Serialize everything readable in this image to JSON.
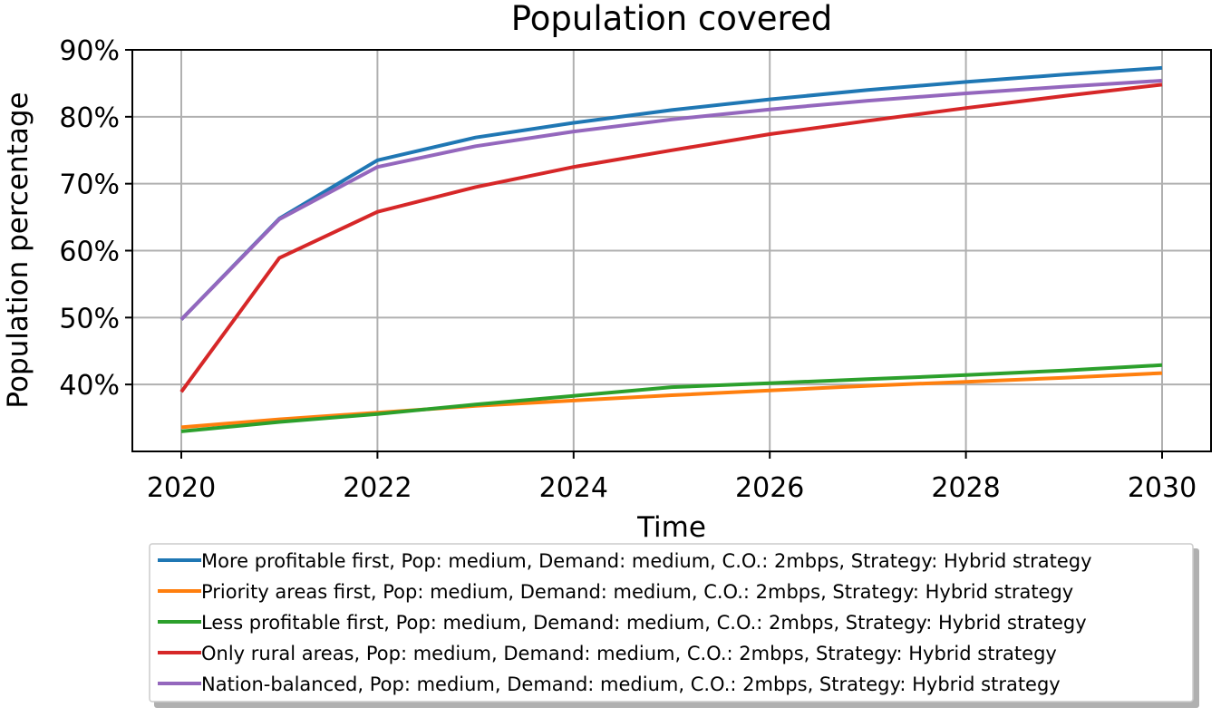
{
  "chart_data": {
    "type": "line",
    "title": "Population covered",
    "xlabel": "Time",
    "ylabel": "Population percentage",
    "x": [
      2020,
      2021,
      2022,
      2023,
      2024,
      2025,
      2026,
      2027,
      2028,
      2029,
      2030
    ],
    "xlim": [
      2020,
      2030
    ],
    "ylim": [
      30,
      90
    ],
    "xticks": [
      2020,
      2022,
      2024,
      2026,
      2028,
      2030
    ],
    "xtick_labels": [
      "2020",
      "2022",
      "2024",
      "2026",
      "2028",
      "2030"
    ],
    "yticks": [
      40,
      50,
      60,
      70,
      80,
      90
    ],
    "ytick_labels": [
      "40%",
      "50%",
      "60%",
      "70%",
      "80%",
      "90%"
    ],
    "grid": true,
    "legend_position": "bottom",
    "series": [
      {
        "name": "More profitable first, Pop: medium, Demand: medium, C.O.: 2mbps, Strategy: Hybrid strategy",
        "color": "#1f77b4",
        "values": [
          49.7,
          64.8,
          73.5,
          76.9,
          79.1,
          81.0,
          82.6,
          84.0,
          85.2,
          86.3,
          87.3
        ]
      },
      {
        "name": "Priority areas first, Pop: medium, Demand: medium, C.O.: 2mbps, Strategy: Hybrid strategy",
        "color": "#ff7f0e",
        "values": [
          33.6,
          34.8,
          35.8,
          36.8,
          37.6,
          38.4,
          39.1,
          39.8,
          40.4,
          41.0,
          41.7
        ]
      },
      {
        "name": "Less profitable first, Pop: medium, Demand: medium, C.O.: 2mbps, Strategy: Hybrid strategy",
        "color": "#2ca02c",
        "values": [
          33.0,
          34.4,
          35.6,
          37.0,
          38.3,
          39.6,
          40.2,
          40.8,
          41.4,
          42.1,
          42.9
        ]
      },
      {
        "name": "Only rural areas, Pop: medium, Demand: medium, C.O.: 2mbps, Strategy: Hybrid strategy",
        "color": "#d62728",
        "values": [
          38.9,
          58.9,
          65.8,
          69.5,
          72.5,
          75.0,
          77.4,
          79.4,
          81.3,
          83.1,
          84.8
        ]
      },
      {
        "name": "Nation-balanced, Pop: medium, Demand: medium, C.O.: 2mbps, Strategy: Hybrid strategy",
        "color": "#9467bd",
        "values": [
          49.7,
          64.7,
          72.5,
          75.6,
          77.8,
          79.6,
          81.1,
          82.4,
          83.5,
          84.5,
          85.4
        ]
      }
    ]
  }
}
